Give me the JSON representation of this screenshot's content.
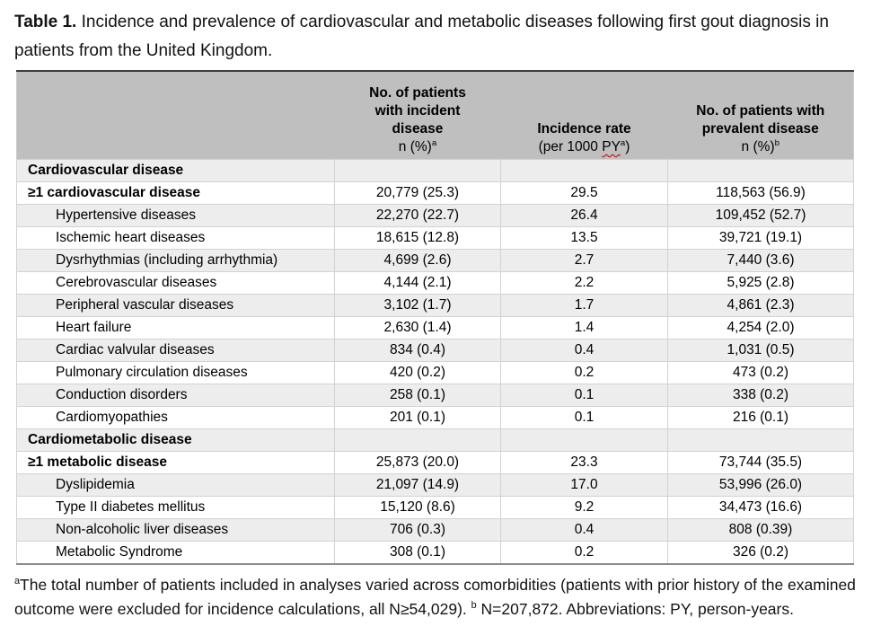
{
  "title": {
    "label": "Table 1.",
    "text": " Incidence and prevalence of cardiovascular and metabolic diseases following first gout diagnosis in patients from the United Kingdom."
  },
  "table": {
    "header": {
      "col1": "",
      "col2": {
        "lines": [
          "No. of patients",
          "with incident",
          "disease"
        ],
        "sub": "n (%)",
        "sup": "a"
      },
      "col3": {
        "lines": [
          "Incidence rate"
        ],
        "sub_prefix": "(per 1000 ",
        "sub_misspelled": "PY",
        "sup": "a",
        "sub_suffix": ")"
      },
      "col4": {
        "lines": [
          "No. of patients with",
          "prevalent disease"
        ],
        "sub": "n (%)",
        "sup": "b"
      }
    },
    "rows": [
      {
        "label": "Cardiovascular disease",
        "style": "section",
        "incident": "",
        "rate": "",
        "prevalent": ""
      },
      {
        "label": "≥1 cardiovascular disease",
        "style": "bold",
        "incident": "20,779 (25.3)",
        "rate": "29.5",
        "prevalent": "118,563 (56.9)"
      },
      {
        "label": "Hypertensive diseases",
        "style": "sub",
        "incident": "22,270 (22.7)",
        "rate": "26.4",
        "prevalent": "109,452 (52.7)"
      },
      {
        "label": "Ischemic heart diseases",
        "style": "sub",
        "incident": "18,615 (12.8)",
        "rate": "13.5",
        "prevalent": "39,721 (19.1)"
      },
      {
        "label": "Dysrhythmias (including arrhythmia)",
        "style": "sub",
        "incident": "4,699 (2.6)",
        "rate": "2.7",
        "prevalent": "7,440 (3.6)"
      },
      {
        "label": "Cerebrovascular diseases",
        "style": "sub",
        "incident": "4,144 (2.1)",
        "rate": "2.2",
        "prevalent": "5,925 (2.8)"
      },
      {
        "label": "Peripheral vascular diseases",
        "style": "sub",
        "incident": "3,102 (1.7)",
        "rate": "1.7",
        "prevalent": "4,861 (2.3)"
      },
      {
        "label": "Heart failure",
        "style": "sub",
        "incident": "2,630 (1.4)",
        "rate": "1.4",
        "prevalent": "4,254 (2.0)"
      },
      {
        "label": "Cardiac valvular diseases",
        "style": "sub",
        "incident": "834 (0.4)",
        "rate": "0.4",
        "prevalent": "1,031 (0.5)"
      },
      {
        "label": "Pulmonary circulation diseases",
        "style": "sub",
        "incident": "420 (0.2)",
        "rate": "0.2",
        "prevalent": "473 (0.2)"
      },
      {
        "label": "Conduction disorders",
        "style": "sub",
        "incident": "258 (0.1)",
        "rate": "0.1",
        "prevalent": "338 (0.2)"
      },
      {
        "label": "Cardiomyopathies",
        "style": "sub",
        "incident": "201 (0.1)",
        "rate": "0.1",
        "prevalent": "216 (0.1)"
      },
      {
        "label": "Cardiometabolic disease",
        "style": "section",
        "incident": "",
        "rate": "",
        "prevalent": ""
      },
      {
        "label": "≥1 metabolic disease",
        "style": "bold",
        "incident": "25,873 (20.0)",
        "rate": "23.3",
        "prevalent": "73,744 (35.5)"
      },
      {
        "label": "Dyslipidemia",
        "style": "sub",
        "incident": "21,097 (14.9)",
        "rate": "17.0",
        "prevalent": "53,996 (26.0)"
      },
      {
        "label": "Type II diabetes mellitus",
        "style": "sub",
        "incident": "15,120 (8.6)",
        "rate": "9.2",
        "prevalent": "34,473 (16.6)"
      },
      {
        "label": "Non-alcoholic liver diseases",
        "style": "sub",
        "incident": "706 (0.3)",
        "rate": "0.4",
        "prevalent": "808 (0.39)"
      },
      {
        "label": "Metabolic Syndrome",
        "style": "sub",
        "incident": "308 (0.1)",
        "rate": "0.2",
        "prevalent": "326 (0.2)"
      }
    ]
  },
  "footnote": {
    "sup_a": "a",
    "part_a": "The total number of patients included in analyses varied across comorbidities (patients with prior history of the examined outcome were excluded for incidence calculations, all N≥54,029). ",
    "sup_b": "b",
    "part_b": " N=207,872. Abbreviations: PY, person-years."
  },
  "colors": {
    "header_bg": "#bfbfbf",
    "stripe_bg": "#ededed",
    "spellcheck_squiggle": "#c00000",
    "table_top_border": "#3d3d3d"
  }
}
